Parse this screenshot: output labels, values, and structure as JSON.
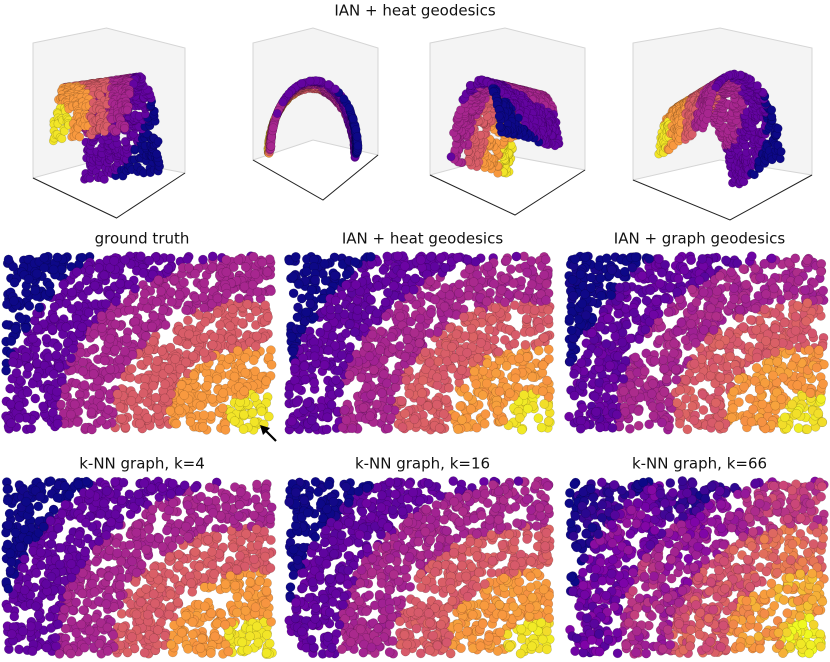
{
  "header": {
    "title": "IAN + heat geodesics"
  },
  "panels": [
    {
      "title": "ground truth"
    },
    {
      "title": "IAN + heat geodesics"
    },
    {
      "title": "IAN + graph geodesics"
    },
    {
      "title": "k-NN graph, k=4"
    },
    {
      "title": "k-NN graph, k=16"
    },
    {
      "title": "k-NN graph, k=66"
    }
  ]
}
